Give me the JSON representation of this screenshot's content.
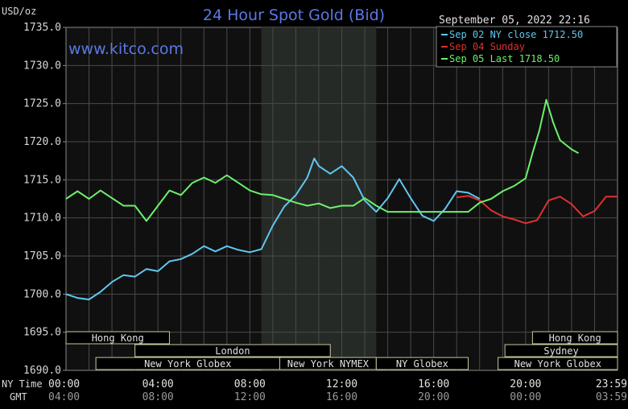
{
  "chart_data": {
    "type": "line",
    "title": "24 Hour Spot Gold (Bid)",
    "ylabel": "USD/oz",
    "watermark": "www.kitco.com",
    "timestamp": "September 05, 2022 22:16",
    "ylim": [
      1690,
      1735
    ],
    "y_ticks": [
      "1735.0",
      "1730.0",
      "1725.0",
      "1720.0",
      "1715.0",
      "1710.0",
      "1705.0",
      "1700.0",
      "1695.0",
      "1690.0"
    ],
    "x_range_hours": [
      0,
      24
    ],
    "x_ticks_ny": [
      "00:00",
      "04:00",
      "08:00",
      "12:00",
      "16:00",
      "20:00",
      "23:59"
    ],
    "x_ticks_gmt": [
      "04:00",
      "08:00",
      "12:00",
      "16:00",
      "20:00",
      "00:00",
      "03:59"
    ],
    "x_label_ny": "NY Time",
    "x_label_gmt": "GMT",
    "shaded_hours": [
      8.5,
      13.5
    ],
    "legend": [
      {
        "label": "Sep 02 NY close 1712.50",
        "color": "#5ec8f0"
      },
      {
        "label": "Sep 04 Sunday",
        "color": "#e03030"
      },
      {
        "label": "Sep 05 Last 1718.50",
        "color": "#6cf06c"
      }
    ],
    "series": [
      {
        "name": "Sep 02 NY close 1712.50",
        "color": "#5ec8f0",
        "x": [
          0,
          0.5,
          1,
          1.5,
          2,
          2.5,
          3,
          3.5,
          4,
          4.5,
          5,
          5.5,
          6,
          6.5,
          7,
          7.5,
          8,
          8.5,
          9,
          9.5,
          10,
          10.5,
          10.8,
          11,
          11.5,
          12,
          12.5,
          13,
          13.5,
          14,
          14.5,
          15,
          15.5,
          16,
          16.5,
          17,
          17.5,
          18
        ],
        "y": [
          1700.0,
          1699.5,
          1699.3,
          1700.3,
          1701.6,
          1702.5,
          1702.3,
          1703.3,
          1703.0,
          1704.3,
          1704.6,
          1705.3,
          1706.3,
          1705.6,
          1706.3,
          1705.8,
          1705.5,
          1705.9,
          1709.0,
          1711.5,
          1713.0,
          1715.3,
          1717.8,
          1716.8,
          1715.8,
          1716.8,
          1715.3,
          1712.3,
          1710.8,
          1712.6,
          1715.1,
          1712.6,
          1710.3,
          1709.6,
          1711.2,
          1713.5,
          1713.3,
          1712.5
        ]
      },
      {
        "name": "Sep 04 Sunday",
        "color": "#e03030",
        "x": [
          17,
          17.5,
          18,
          18.5,
          19,
          19.5,
          20,
          20.5,
          21,
          21.5,
          22,
          22.5,
          23,
          23.5,
          24
        ],
        "y": [
          1712.7,
          1712.9,
          1712.3,
          1711.0,
          1710.2,
          1709.8,
          1709.3,
          1709.7,
          1712.3,
          1712.8,
          1711.8,
          1710.2,
          1710.9,
          1712.8,
          1712.8
        ]
      },
      {
        "name": "Sep 05 Last 1718.50",
        "color": "#6cf06c",
        "x": [
          0,
          0.5,
          1,
          1.5,
          2,
          2.5,
          3,
          3.5,
          4,
          4.5,
          5,
          5.5,
          6,
          6.5,
          7,
          7.5,
          8,
          8.5,
          9,
          9.5,
          10,
          10.5,
          11,
          11.5,
          12,
          12.5,
          13,
          13.5,
          14,
          15,
          16,
          17,
          17.5,
          18,
          18.5,
          19,
          19.5,
          20,
          20.3,
          20.6,
          20.9,
          21.2,
          21.5,
          22,
          22.3
        ],
        "y": [
          1712.5,
          1713.5,
          1712.5,
          1713.6,
          1712.6,
          1711.6,
          1711.6,
          1709.6,
          1711.6,
          1713.6,
          1713.0,
          1714.6,
          1715.3,
          1714.6,
          1715.6,
          1714.6,
          1713.6,
          1713.1,
          1713.0,
          1712.5,
          1712.0,
          1711.6,
          1711.9,
          1711.3,
          1711.6,
          1711.6,
          1712.6,
          1711.6,
          1710.8,
          1710.8,
          1710.8,
          1710.8,
          1710.8,
          1712.0,
          1712.5,
          1713.5,
          1714.2,
          1715.2,
          1718.5,
          1721.5,
          1725.5,
          1722.5,
          1720.2,
          1719.0,
          1718.5
        ]
      }
    ],
    "sessions": [
      {
        "label": "Hong Kong",
        "row": 1,
        "start": 0,
        "end": 4.5
      },
      {
        "label": "London",
        "row": 2,
        "start": 3.0,
        "end": 11.5
      },
      {
        "label": "New York Globex",
        "row": 3,
        "start": 1.3,
        "end": 9.3
      },
      {
        "label": "New York NYMEX",
        "row": 3,
        "start": 9.3,
        "end": 13.5
      },
      {
        "label": "NY Globex",
        "row": 3,
        "start": 13.5,
        "end": 17.5
      },
      {
        "label": "Hong Kong",
        "row": 1,
        "start": 20.3,
        "end": 24
      },
      {
        "label": "Sydney",
        "row": 2,
        "start": 19.1,
        "end": 24
      },
      {
        "label": "New York Globex",
        "row": 3,
        "start": 18.8,
        "end": 24
      }
    ],
    "grid": true
  }
}
